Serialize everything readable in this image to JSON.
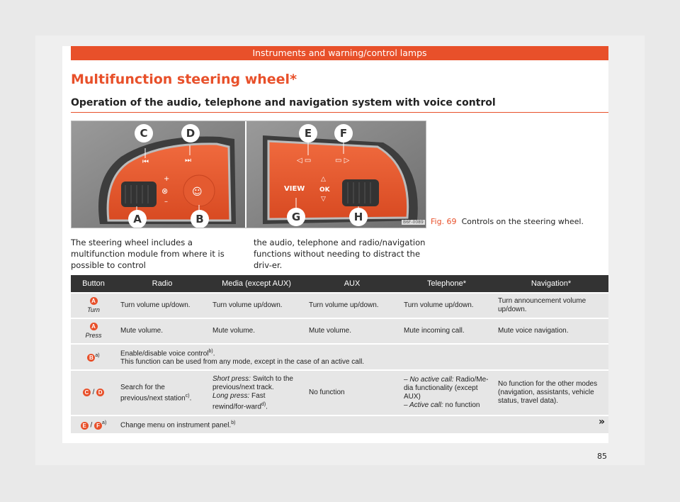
{
  "header": {
    "band": "Instruments and warning/control lamps"
  },
  "title": "Multifunction steering wheel*",
  "subtitle": "Operation of the audio, telephone and navigation system with voice control",
  "figure": {
    "labels": {
      "c": "C",
      "d": "D",
      "a": "A",
      "b": "B",
      "e": "E",
      "f": "F",
      "g": "G",
      "h": "H"
    },
    "view_label": "VIEW",
    "ok_label": "OK",
    "code": "B6F-0089",
    "caption_num": "Fig. 69",
    "caption_text": "Controls on the steering wheel."
  },
  "intro": {
    "col1": "The steering wheel includes a multifunction module from where it is possible to control",
    "col2": "the audio, telephone and radio/navigation functions without needing to distract the driv-er."
  },
  "table": {
    "headers": [
      "Button",
      "Radio",
      "Media (except AUX)",
      "AUX",
      "Telephone*",
      "Navigation*"
    ],
    "r1": {
      "key": "A",
      "sub": "Turn",
      "radio": "Turn volume up/down.",
      "media": "Turn volume up/down.",
      "aux": "Turn volume up/down.",
      "tel": "Turn volume up/down.",
      "nav": "Turn announcement volume up/down."
    },
    "r2": {
      "key": "A",
      "sub": "Press",
      "radio": "Mute volume.",
      "media": "Mute volume.",
      "aux": "Mute volume.",
      "tel": "Mute incoming call.",
      "nav": "Mute voice navigation."
    },
    "r3": {
      "key": "B",
      "sup": "a)",
      "line1": "Enable/disable voice control",
      "line1_sup": "b)",
      "line1_end": ".",
      "line2": "This function can be used from any mode, except in the case of an active call."
    },
    "r4": {
      "key1": "C",
      "sep": " / ",
      "key2": "D",
      "radio": "Search for the previous/next station",
      "radio_sup": "c)",
      "radio_end": ".",
      "media_short_l": "Short press:",
      "media_short": " Switch to the previous/next track.",
      "media_long_l": "Long press:",
      "media_long": " Fast rewind/for-ward",
      "media_sup": "d)",
      "media_end": ".",
      "aux": "No function",
      "tel_a_l": "– No active call:",
      "tel_a": " Radio/Me-dia functionality (except AUX)",
      "tel_b_l": "– Active call:",
      "tel_b": " no function",
      "nav": "No function for the other modes (navigation, assistants, vehicle status, travel data)."
    },
    "r5": {
      "key1": "E",
      "sep": " / ",
      "key2": "F",
      "sup": "a)",
      "text": "Change menu on instrument panel.",
      "text_sup": "b)"
    }
  },
  "continue_mark": "»",
  "page_number": "85",
  "colors": {
    "accent": "#e8502a",
    "header_bg": "#333333",
    "row_bg": "#e6e6e6"
  }
}
